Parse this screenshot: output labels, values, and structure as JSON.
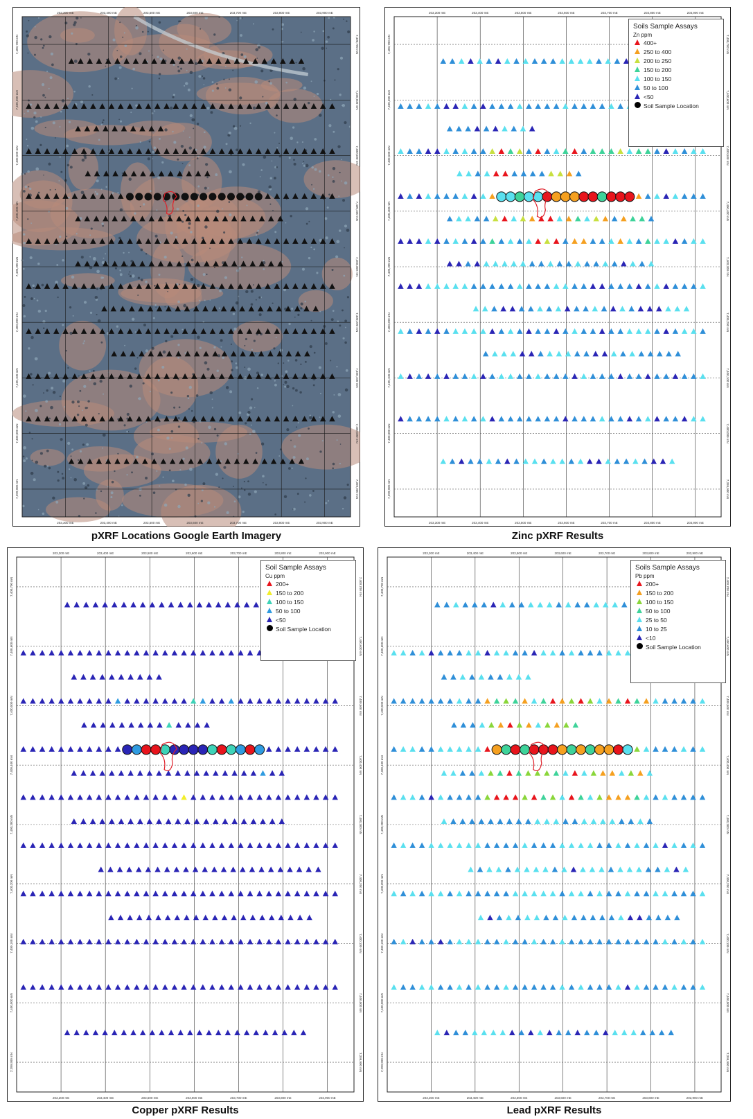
{
  "captions": {
    "imagery": "pXRF Locations Google Earth Imagery",
    "zinc": "Zinc pXRF Results",
    "copper": "Copper pXRF Results",
    "lead": "Lead pXRF Results"
  },
  "map_frame": {
    "easting_labels": [
      "203,300 mE",
      "203,400 mE",
      "203,500 mE",
      "203,600 mE",
      "203,700 mE",
      "203,800 mE",
      "203,900 mE",
      "204,000 mE"
    ],
    "northing_labels": [
      "7,400,700 mN",
      "7,400,600 mN",
      "7,400,500 mN",
      "7,400,400 mN",
      "7,400,300 mN",
      "7,400,200 mN",
      "7,400,100 mN",
      "7,400,000 mN",
      "7,399,900 mN"
    ]
  },
  "legends": {
    "zinc": {
      "title": "Soils Sample Assays",
      "unit": "Zn ppm",
      "items": [
        {
          "label": "400+",
          "color": "#e8141c"
        },
        {
          "label": "250  to  400",
          "color": "#f5a020"
        },
        {
          "label": "200  to  250",
          "color": "#c8e040"
        },
        {
          "label": "150  to  200",
          "color": "#3ed39a"
        },
        {
          "label": "100  to  150",
          "color": "#5ae0ef"
        },
        {
          "label": "50  to  100",
          "color": "#2f8fd8"
        },
        {
          "label": "<50",
          "color": "#2a25b5"
        }
      ],
      "location_label": "Soil Sample Location"
    },
    "copper": {
      "title": "Soil Sample Assays",
      "unit": "Cu ppm",
      "items": [
        {
          "label": "200+",
          "color": "#e8141c"
        },
        {
          "label": "150  to  200",
          "color": "#f2ee2c"
        },
        {
          "label": "100  to  150",
          "color": "#3ed3b8"
        },
        {
          "label": "50  to  100",
          "color": "#2f9be0"
        },
        {
          "label": "<50",
          "color": "#2a25b5"
        }
      ],
      "location_label": "Soil Sample Location"
    },
    "lead": {
      "title": "Soils Sample Assays",
      "unit": "Pb ppm",
      "items": [
        {
          "label": "200+",
          "color": "#e8141c"
        },
        {
          "label": "150  to  200",
          "color": "#f5a020"
        },
        {
          "label": "100  to  150",
          "color": "#8ad63a"
        },
        {
          "label": "50  to  100",
          "color": "#3ed39a"
        },
        {
          "label": "25  to  50",
          "color": "#5ae0ef"
        },
        {
          "label": "10  to  25",
          "color": "#2f8fd8"
        },
        {
          "label": "<10",
          "color": "#2a25b5"
        }
      ],
      "location_label": "Soil Sample Location"
    }
  },
  "colors": {
    "outline": "#e0202a",
    "grid": "#333333",
    "imagery_dark": "#5b6f86",
    "imagery_light": "#b88a7a"
  }
}
